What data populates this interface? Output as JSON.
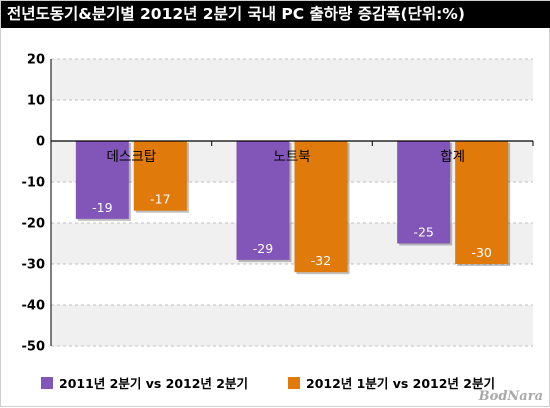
{
  "title": "전년도동기&분기별 2012년 2분기 국내 PC 출하량 증감폭(단위:%)",
  "watermark": "BodNara",
  "colors": {
    "series1": "#8156B8",
    "series2": "#E07A0A",
    "background_band": "#F0F0F0",
    "gridline": "#BFBFBF"
  },
  "chart_data": {
    "type": "bar",
    "title": "전년도동기&분기별 2012년 2분기 국내 PC 출하량 증감폭(단위:%)",
    "categories": [
      "데스크탑",
      "노트북",
      "합계"
    ],
    "series": [
      {
        "name": "2011년 2분기 vs 2012년 2분기",
        "values": [
          -19,
          -29,
          -25
        ]
      },
      {
        "name": "2012년 1분기 vs 2012년 2분기",
        "values": [
          -17,
          -32,
          -30
        ]
      }
    ],
    "ylim": [
      -50,
      20
    ],
    "yticks": [
      20,
      10,
      0,
      -10,
      -20,
      -30,
      -40,
      -50
    ],
    "xlabel": "",
    "ylabel": "",
    "grid": true,
    "legend": "bottom"
  }
}
